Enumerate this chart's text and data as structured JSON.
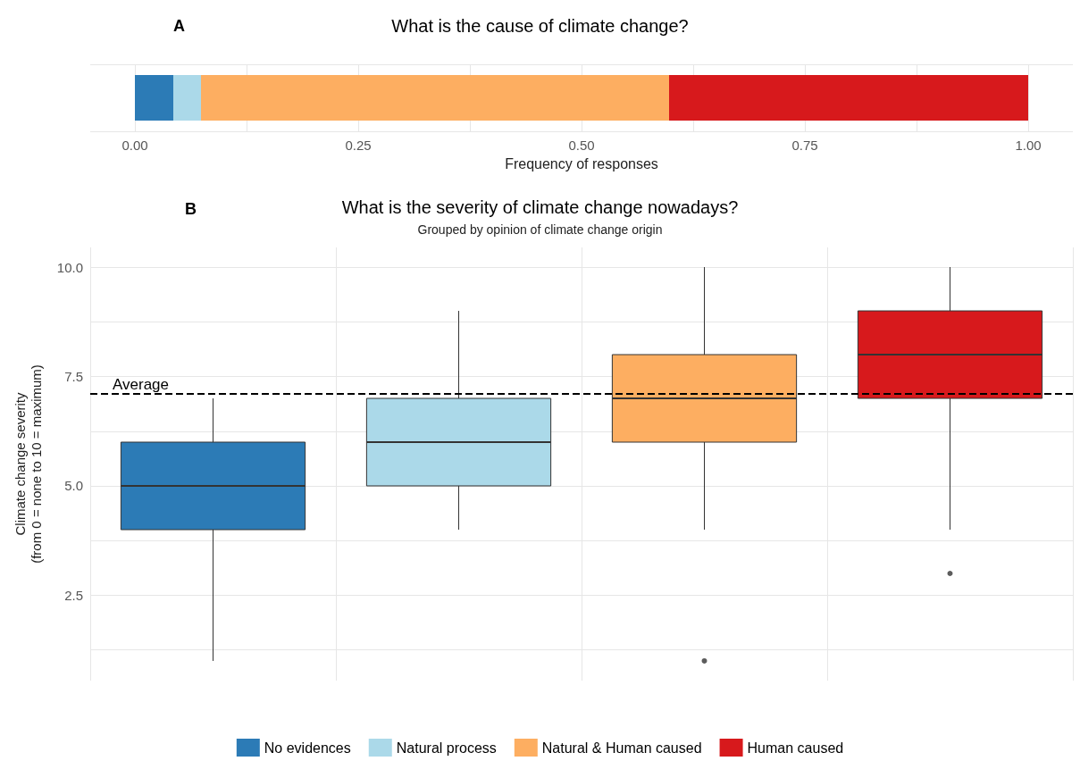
{
  "chart_data": [
    {
      "type": "bar",
      "orientation": "horizontal",
      "stacked": true,
      "title": "What is the cause of climate change?",
      "xlabel": "Frequency of responses",
      "annotations": [
        "A"
      ],
      "categories": [
        null
      ],
      "series": [
        {
          "color": "#2c7bb6",
          "values": [
            0.043
          ]
        },
        {
          "color": "#abd9e9",
          "values": [
            0.031
          ]
        },
        {
          "color": "#fdae61",
          "values": [
            0.524
          ]
        },
        {
          "color": "#d7191c",
          "values": [
            0.402
          ]
        }
      ],
      "xlim": [
        -0.05,
        1.05
      ],
      "xticks": [
        {
          "value": 0,
          "label": "0.00"
        },
        {
          "value": 0.125,
          "label": null
        },
        {
          "value": 0.25,
          "label": "0.25"
        },
        {
          "value": 0.375,
          "label": null
        },
        {
          "value": 0.5,
          "label": "0.50"
        },
        {
          "value": 0.625,
          "label": null
        },
        {
          "value": 0.75,
          "label": "0.75"
        },
        {
          "value": 0.875,
          "label": null
        },
        {
          "value": 1,
          "label": "1.00"
        }
      ],
      "grid": true
    },
    {
      "type": "box",
      "title": "What is the severity of climate change nowadays?",
      "subtitle": "Grouped by opinion of climate change origin",
      "ylabel": "Climate change severity\n(from 0 = none to 10 = maximum)",
      "annotations": [
        "B"
      ],
      "categories": [
        null,
        null,
        null,
        null
      ],
      "series": [
        {
          "name": "No evidences",
          "color": "#2c7bb6",
          "boxes": [
            {
              "low": 1,
              "q1": 4,
              "median": 5,
              "q3": 6,
              "high": 7
            },
            null,
            null,
            null
          ]
        },
        {
          "name": "Natural process",
          "color": "#abd9e9",
          "boxes": [
            null,
            {
              "low": 4,
              "q1": 5,
              "median": 6,
              "q3": 7,
              "high": 9
            },
            null,
            null
          ]
        },
        {
          "name": "Natural & Human caused",
          "color": "#fdae61",
          "boxes": [
            null,
            null,
            {
              "low": 4,
              "q1": 6,
              "median": 7,
              "q3": 8,
              "high": 10,
              "outliers": [
                1
              ]
            },
            null
          ]
        },
        {
          "name": "Human caused",
          "color": "#d7191c",
          "boxes": [
            null,
            null,
            null,
            {
              "low": 4,
              "q1": 7,
              "median": 8,
              "q3": 9,
              "high": 10,
              "outliers": [
                3
              ]
            }
          ]
        }
      ],
      "ylim": [
        0.55,
        10.45
      ],
      "yticks": [
        {
          "value": 1.25,
          "label": null
        },
        {
          "value": 2.5,
          "label": "2.5"
        },
        {
          "value": 3.75,
          "label": null
        },
        {
          "value": 5,
          "label": "5.0"
        },
        {
          "value": 6.25,
          "label": null
        },
        {
          "value": 7.5,
          "label": "7.5"
        },
        {
          "value": 8.75,
          "label": null
        },
        {
          "value": 10,
          "label": "10.0"
        }
      ],
      "ref_lines": [
        {
          "axis": "y",
          "value": 7.1,
          "label": "Average",
          "line_style": "dashed",
          "color": "#000000"
        }
      ],
      "grid": true,
      "legend": "bottom"
    }
  ]
}
